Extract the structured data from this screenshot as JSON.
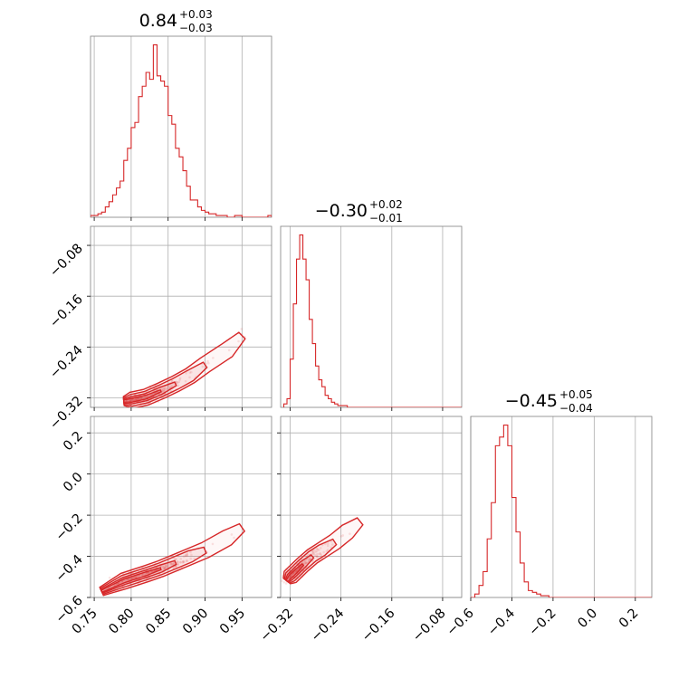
{
  "chart_data": [
    {
      "type": "histogram",
      "panel": "diag-0",
      "title": {
        "value": "0.84",
        "upper": "+0.03",
        "lower": "−0.03"
      },
      "xlim": [
        0.745,
        0.99
      ],
      "ylim": [
        0,
        1.05
      ],
      "bins": {
        "start": 0.745,
        "width": 0.005,
        "heights": [
          0.01,
          0.01,
          0.02,
          0.03,
          0.06,
          0.09,
          0.13,
          0.17,
          0.21,
          0.33,
          0.4,
          0.52,
          0.55,
          0.7,
          0.76,
          0.84,
          0.8,
          1.0,
          0.82,
          0.79,
          0.76,
          0.59,
          0.54,
          0.4,
          0.35,
          0.27,
          0.18,
          0.1,
          0.1,
          0.06,
          0.04,
          0.03,
          0.02,
          0.02,
          0.01,
          0.01,
          0.01,
          0.0,
          0.0,
          0.01,
          0.01,
          0.0,
          0.0,
          0.0,
          0.0,
          0.0,
          0.0,
          0.0,
          0.01
        ]
      },
      "grid": true
    },
    {
      "type": "histogram",
      "panel": "diag-1",
      "title": {
        "value": "−0.30",
        "upper": "+0.02",
        "lower": "−0.01"
      },
      "xlim": [
        -0.335,
        -0.05
      ],
      "ylim": [
        0,
        1.05
      ],
      "bins": {
        "start": -0.33,
        "width": 0.005,
        "heights": [
          0.02,
          0.05,
          0.28,
          0.6,
          0.86,
          1.0,
          0.86,
          0.74,
          0.51,
          0.37,
          0.24,
          0.16,
          0.12,
          0.07,
          0.05,
          0.03,
          0.02,
          0.01,
          0.01,
          0.01,
          0.0,
          0.0,
          0.0,
          0.0,
          0.0,
          0.0,
          0.0,
          0.0,
          0.0,
          0.0,
          0.0,
          0.0,
          0.0,
          0.0,
          0.0,
          0.0,
          0.0,
          0.0,
          0.0,
          0.0,
          0.0,
          0.0,
          0.0,
          0.0,
          0.0,
          0.0,
          0.0,
          0.0,
          0.0,
          0.0,
          0.0,
          0.0,
          0.0,
          0.0,
          0.0,
          0.0
        ]
      },
      "grid": true
    },
    {
      "type": "histogram",
      "panel": "diag-2",
      "title": {
        "value": "−0.45",
        "upper": "+0.05",
        "lower": "−0.04"
      },
      "xlim": [
        -0.6,
        0.28
      ],
      "ylim": [
        0,
        1.05
      ],
      "bins": {
        "start": -0.6,
        "width": 0.02,
        "heights": [
          0.0,
          0.02,
          0.07,
          0.15,
          0.34,
          0.55,
          0.88,
          0.93,
          1.0,
          0.88,
          0.58,
          0.38,
          0.2,
          0.09,
          0.04,
          0.03,
          0.02,
          0.01,
          0.01,
          0.0,
          0.0,
          0.0,
          0.0,
          0.0,
          0.0,
          0.0,
          0.0,
          0.0,
          0.0,
          0.0,
          0.0,
          0.0,
          0.0,
          0.0,
          0.0,
          0.0,
          0.0,
          0.0,
          0.0,
          0.0,
          0.0,
          0.0,
          0.0,
          0.0
        ]
      },
      "grid": true
    },
    {
      "type": "contour",
      "panel": "joint-1-0",
      "xlim": [
        0.745,
        0.99
      ],
      "ylim": [
        -0.335,
        -0.05
      ],
      "yticks": [
        "−0.08",
        "−0.16",
        "−0.24",
        "−0.32"
      ],
      "yticks_values": [
        -0.08,
        -0.16,
        -0.24,
        -0.32
      ],
      "ridge": [
        [
          0.79,
          -0.325
        ],
        [
          0.8,
          -0.324
        ],
        [
          0.82,
          -0.319
        ],
        [
          0.84,
          -0.309
        ],
        [
          0.86,
          -0.298
        ],
        [
          0.88,
          -0.285
        ],
        [
          0.9,
          -0.268
        ],
        [
          0.93,
          -0.245
        ],
        [
          0.95,
          -0.222
        ]
      ],
      "grid": true
    },
    {
      "type": "contour",
      "panel": "joint-2-0",
      "xlim": [
        0.745,
        0.99
      ],
      "ylim": [
        -0.6,
        0.28
      ],
      "xticks": [
        "0.75",
        "0.80",
        "0.85",
        "0.90",
        "0.95"
      ],
      "xticks_values": [
        0.75,
        0.8,
        0.85,
        0.9,
        0.95
      ],
      "yticks": [
        "0.2",
        "0.0",
        "−0.2",
        "−0.4",
        "−0.6"
      ],
      "yticks_values": [
        0.2,
        0.0,
        -0.2,
        -0.4,
        -0.6
      ],
      "ridge": [
        [
          0.76,
          -0.57
        ],
        [
          0.79,
          -0.52
        ],
        [
          0.82,
          -0.485
        ],
        [
          0.84,
          -0.46
        ],
        [
          0.86,
          -0.43
        ],
        [
          0.88,
          -0.4
        ],
        [
          0.9,
          -0.37
        ],
        [
          0.93,
          -0.31
        ],
        [
          0.95,
          -0.26
        ]
      ],
      "grid": true
    },
    {
      "type": "contour",
      "panel": "joint-2-1",
      "xlim": [
        -0.335,
        -0.05
      ],
      "ylim": [
        -0.6,
        0.28
      ],
      "xticks": [
        "−0.32",
        "−0.24",
        "−0.16",
        "−0.08"
      ],
      "xticks_values": [
        -0.32,
        -0.24,
        -0.16,
        -0.08
      ],
      "ridge": [
        [
          -0.325,
          -0.52
        ],
        [
          -0.32,
          -0.5
        ],
        [
          -0.31,
          -0.47
        ],
        [
          -0.3,
          -0.44
        ],
        [
          -0.285,
          -0.4
        ],
        [
          -0.27,
          -0.37
        ],
        [
          -0.25,
          -0.33
        ],
        [
          -0.23,
          -0.28
        ],
        [
          -0.21,
          -0.23
        ]
      ],
      "grid": true
    }
  ],
  "diag2_xticks": [
    "−0.6",
    "−0.4",
    "−0.2",
    "0.0",
    "0.2"
  ],
  "diag2_xticks_values": [
    -0.6,
    -0.4,
    -0.2,
    0.0,
    0.2
  ],
  "colors": {
    "series": "#d62728",
    "grid": "#b0b0b0",
    "frame": "#808080"
  }
}
